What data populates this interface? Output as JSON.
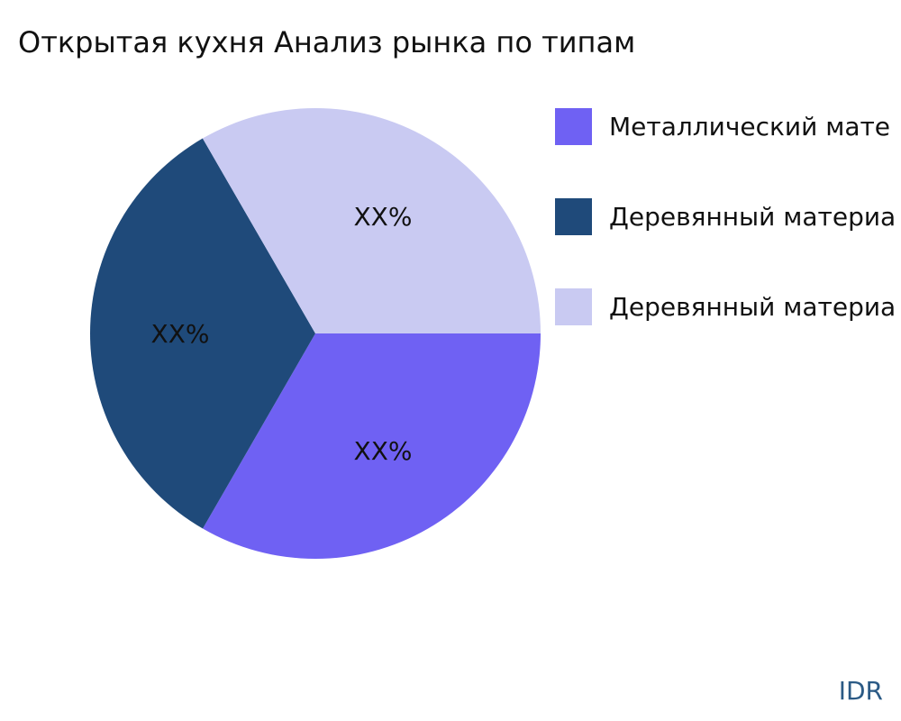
{
  "chart_data": {
    "type": "pie",
    "title": "Открытая кухня Анализ рынка по типам",
    "slices": [
      {
        "label": "Металлический мате",
        "value": 33.33,
        "data_label": "XX%",
        "color": "#6f61f3"
      },
      {
        "label": "Деревянный материа",
        "value": 33.33,
        "data_label": "XX%",
        "color": "#1f4a7a"
      },
      {
        "label": "Деревянный материа",
        "value": 33.34,
        "data_label": "XX%",
        "color": "#c9caf2"
      }
    ],
    "start_angle_deg": 0,
    "direction": "clockwise",
    "legend_position": "right"
  },
  "watermark": "IDR"
}
